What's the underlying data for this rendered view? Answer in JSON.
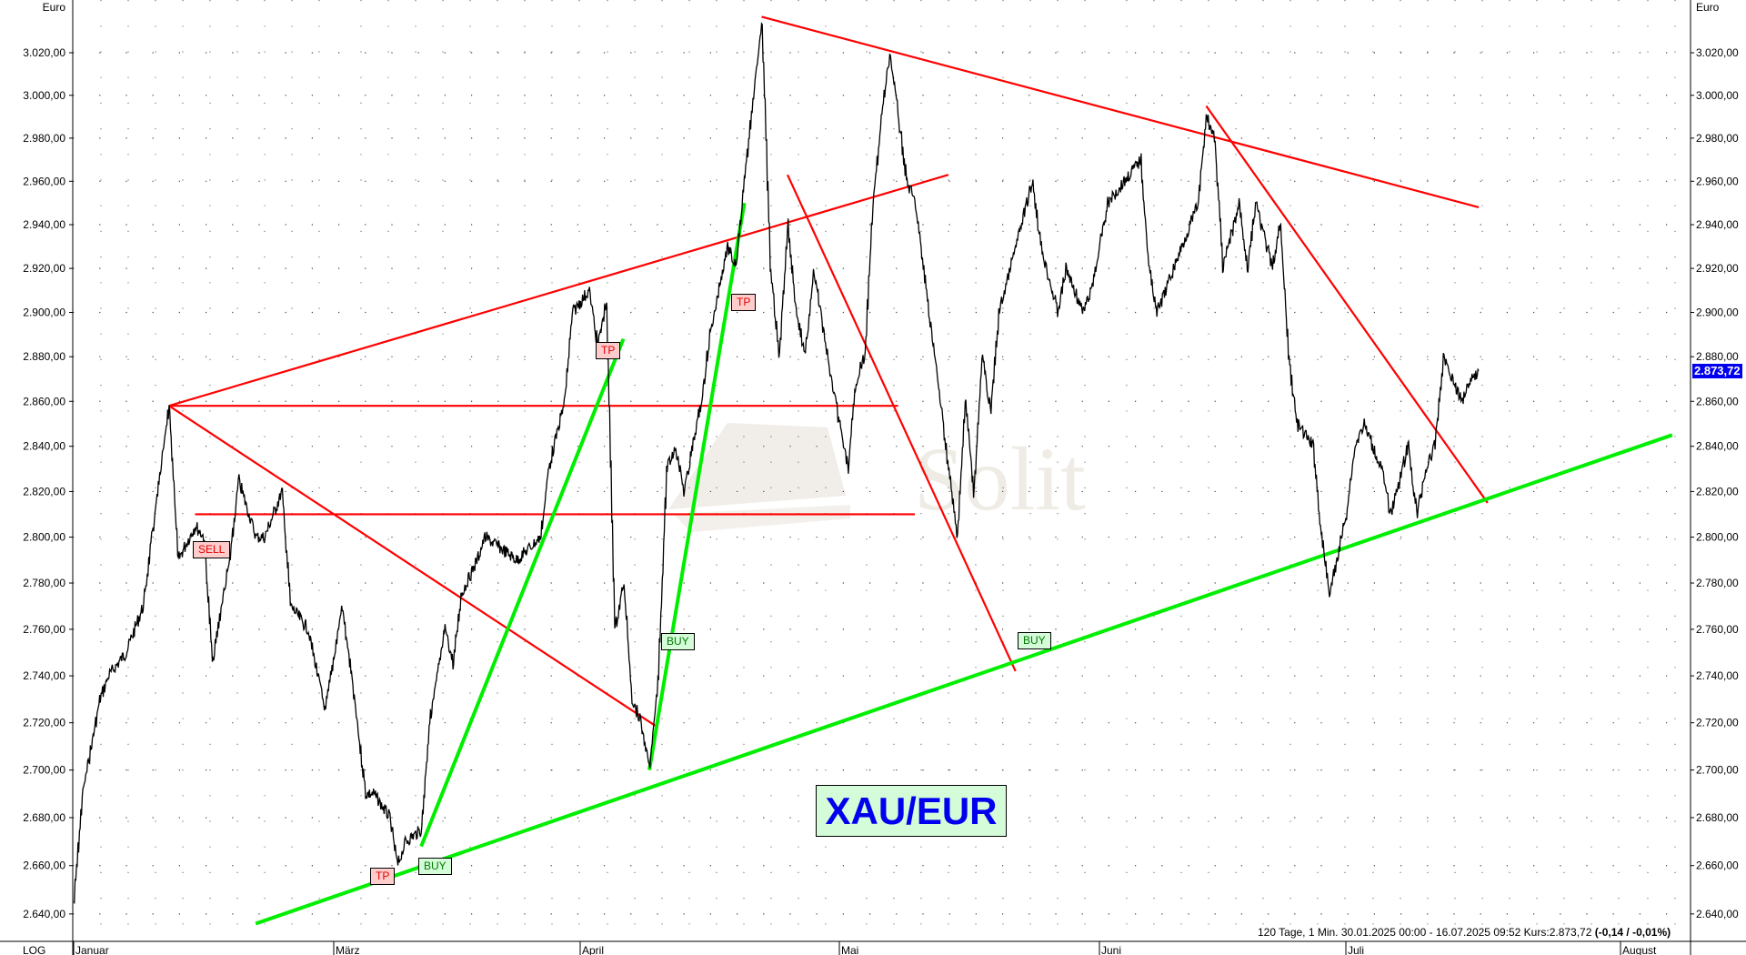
{
  "chart_data": {
    "type": "line",
    "title": "XAU/EUR",
    "scale": "log",
    "y_unit": "Euro",
    "scale_label": "LOG",
    "ylim": [
      2630,
      3045
    ],
    "y_ticks": [
      2640,
      2660,
      2680,
      2700,
      2720,
      2740,
      2760,
      2780,
      2800,
      2820,
      2840,
      2860,
      2880,
      2900,
      2920,
      2940,
      2960,
      2980,
      3000,
      3020
    ],
    "x_ticks": [
      "Januar",
      "März",
      "April",
      "Mai",
      "Juni",
      "Juli",
      "August"
    ],
    "grid": true,
    "info": {
      "text": "120 Tage, 1 Min. 30.01.2025 00:00 - 16.07.2025 09:52 Kurs:2.873,72",
      "change": "(-0,14 / -0,01%)"
    },
    "last_price": "2.873,72",
    "colors": {
      "price": "#000000",
      "resistance": "#ff0000",
      "support": "#00ee00",
      "last_tag": "#0000ee",
      "title_bg": "#d4fcd9",
      "title_text": "#0000ee"
    },
    "series": [
      {
        "points": [
          [
            "2025-01-30",
            2645
          ],
          [
            "2025-01-31",
            2690
          ],
          [
            "2025-02-02",
            2730
          ],
          [
            "2025-02-03",
            2740
          ],
          [
            "2025-02-05",
            2750
          ],
          [
            "2025-02-07",
            2770
          ],
          [
            "2025-02-08",
            2800
          ],
          [
            "2025-02-10",
            2858
          ],
          [
            "2025-02-11",
            2790
          ],
          [
            "2025-02-13",
            2805
          ],
          [
            "2025-02-14",
            2800
          ],
          [
            "2025-02-15",
            2745
          ],
          [
            "2025-02-16",
            2770
          ],
          [
            "2025-02-17",
            2790
          ],
          [
            "2025-02-18",
            2825
          ],
          [
            "2025-02-20",
            2800
          ],
          [
            "2025-02-21",
            2800
          ],
          [
            "2025-02-23",
            2820
          ],
          [
            "2025-02-24",
            2770
          ],
          [
            "2025-02-26",
            2760
          ],
          [
            "2025-02-28",
            2725
          ],
          [
            "2025-03-02",
            2770
          ],
          [
            "2025-03-03",
            2745
          ],
          [
            "2025-03-05",
            2690
          ],
          [
            "2025-03-06",
            2690
          ],
          [
            "2025-03-08",
            2680
          ],
          [
            "2025-03-09",
            2660
          ],
          [
            "2025-03-10",
            2670
          ],
          [
            "2025-03-12",
            2675
          ],
          [
            "2025-03-13",
            2720
          ],
          [
            "2025-03-15",
            2760
          ],
          [
            "2025-03-16",
            2745
          ],
          [
            "2025-03-17",
            2775
          ],
          [
            "2025-03-19",
            2790
          ],
          [
            "2025-03-20",
            2800
          ],
          [
            "2025-03-22",
            2795
          ],
          [
            "2025-03-24",
            2790
          ],
          [
            "2025-03-27",
            2800
          ],
          [
            "2025-03-28",
            2830
          ],
          [
            "2025-03-30",
            2860
          ],
          [
            "2025-03-31",
            2900
          ],
          [
            "2025-04-02",
            2910
          ],
          [
            "2025-04-03",
            2885
          ],
          [
            "2025-04-04",
            2905
          ],
          [
            "2025-04-05",
            2760
          ],
          [
            "2025-04-06",
            2780
          ],
          [
            "2025-04-07",
            2730
          ],
          [
            "2025-04-08",
            2720
          ],
          [
            "2025-04-09",
            2700
          ],
          [
            "2025-04-10",
            2740
          ],
          [
            "2025-04-11",
            2830
          ],
          [
            "2025-04-12",
            2840
          ],
          [
            "2025-04-13",
            2820
          ],
          [
            "2025-04-15",
            2860
          ],
          [
            "2025-04-16",
            2890
          ],
          [
            "2025-04-18",
            2930
          ],
          [
            "2025-04-19",
            2920
          ],
          [
            "2025-04-20",
            2960
          ],
          [
            "2025-04-21",
            3000
          ],
          [
            "2025-04-22",
            3035
          ],
          [
            "2025-04-23",
            2920
          ],
          [
            "2025-04-24",
            2880
          ],
          [
            "2025-04-25",
            2940
          ],
          [
            "2025-04-26",
            2900
          ],
          [
            "2025-04-27",
            2880
          ],
          [
            "2025-04-28",
            2920
          ],
          [
            "2025-04-30",
            2870
          ],
          [
            "2025-05-01",
            2850
          ],
          [
            "2025-05-02",
            2830
          ],
          [
            "2025-05-03",
            2870
          ],
          [
            "2025-05-04",
            2880
          ],
          [
            "2025-05-05",
            2950
          ],
          [
            "2025-05-06",
            2990
          ],
          [
            "2025-05-07",
            3020
          ],
          [
            "2025-05-08",
            2990
          ],
          [
            "2025-05-09",
            2960
          ],
          [
            "2025-05-10",
            2950
          ],
          [
            "2025-05-11",
            2920
          ],
          [
            "2025-05-12",
            2890
          ],
          [
            "2025-05-13",
            2860
          ],
          [
            "2025-05-15",
            2800
          ],
          [
            "2025-05-16",
            2860
          ],
          [
            "2025-05-17",
            2820
          ],
          [
            "2025-05-18",
            2880
          ],
          [
            "2025-05-19",
            2855
          ],
          [
            "2025-05-20",
            2900
          ],
          [
            "2025-05-22",
            2930
          ],
          [
            "2025-05-24",
            2960
          ],
          [
            "2025-05-25",
            2930
          ],
          [
            "2025-05-27",
            2900
          ],
          [
            "2025-05-28",
            2920
          ],
          [
            "2025-05-30",
            2900
          ],
          [
            "2025-05-31",
            2910
          ],
          [
            "2025-06-02",
            2950
          ],
          [
            "2025-06-04",
            2960
          ],
          [
            "2025-06-06",
            2970
          ],
          [
            "2025-06-07",
            2920
          ],
          [
            "2025-06-08",
            2900
          ],
          [
            "2025-06-10",
            2920
          ],
          [
            "2025-06-11",
            2930
          ],
          [
            "2025-06-13",
            2950
          ],
          [
            "2025-06-14",
            2990
          ],
          [
            "2025-06-15",
            2980
          ],
          [
            "2025-06-16",
            2920
          ],
          [
            "2025-06-18",
            2950
          ],
          [
            "2025-06-19",
            2920
          ],
          [
            "2025-06-20",
            2950
          ],
          [
            "2025-06-22",
            2920
          ],
          [
            "2025-06-23",
            2940
          ],
          [
            "2025-06-24",
            2880
          ],
          [
            "2025-06-25",
            2850
          ],
          [
            "2025-06-27",
            2840
          ],
          [
            "2025-06-28",
            2800
          ],
          [
            "2025-06-29",
            2775
          ],
          [
            "2025-07-01",
            2810
          ],
          [
            "2025-07-02",
            2840
          ],
          [
            "2025-07-03",
            2850
          ],
          [
            "2025-07-05",
            2830
          ],
          [
            "2025-07-06",
            2810
          ],
          [
            "2025-07-08",
            2840
          ],
          [
            "2025-07-09",
            2810
          ],
          [
            "2025-07-10",
            2830
          ],
          [
            "2025-07-11",
            2840
          ],
          [
            "2025-07-12",
            2880
          ],
          [
            "2025-07-14",
            2860
          ],
          [
            "2025-07-15",
            2870
          ],
          [
            "2025-07-16",
            2873.72
          ]
        ]
      }
    ],
    "trendlines": [
      {
        "kind": "resistance",
        "from": [
          "2025-02-10",
          2858
        ],
        "to": [
          "2025-05-14",
          2963
        ]
      },
      {
        "kind": "resistance",
        "from": [
          "2025-02-10",
          2858
        ],
        "to": [
          "2025-05-08",
          2858
        ]
      },
      {
        "kind": "resistance",
        "from": [
          "2025-02-13",
          2810
        ],
        "to": [
          "2025-05-10",
          2810
        ]
      },
      {
        "kind": "resistance",
        "from": [
          "2025-02-10",
          2858
        ],
        "to": [
          "2025-04-10",
          2718
        ]
      },
      {
        "kind": "resistance",
        "from": [
          "2025-04-22",
          3037
        ],
        "to": [
          "2025-07-16",
          2948
        ]
      },
      {
        "kind": "resistance",
        "from": [
          "2025-04-25",
          2963
        ],
        "to": [
          "2025-05-22",
          2742
        ]
      },
      {
        "kind": "resistance",
        "from": [
          "2025-06-14",
          2995
        ],
        "to": [
          "2025-07-17",
          2815
        ]
      },
      {
        "kind": "support",
        "from": [
          "2025-02-20",
          2636
        ],
        "to": [
          "2025-08-08",
          2845
        ]
      },
      {
        "kind": "support",
        "from": [
          "2025-03-12",
          2668
        ],
        "to": [
          "2025-04-06",
          2888
        ]
      },
      {
        "kind": "support",
        "from": [
          "2025-04-09",
          2700
        ],
        "to": [
          "2025-04-20",
          2950
        ]
      }
    ],
    "annotations": [
      {
        "text": "SELL",
        "kind": "sell"
      },
      {
        "text": "TP",
        "kind": "tp"
      },
      {
        "text": "TP",
        "kind": "tp"
      },
      {
        "text": "TP",
        "kind": "tp"
      },
      {
        "text": "BUY",
        "kind": "buy"
      },
      {
        "text": "BUY",
        "kind": "buy"
      },
      {
        "text": "BUY",
        "kind": "buy"
      }
    ],
    "watermark": "Solit"
  }
}
